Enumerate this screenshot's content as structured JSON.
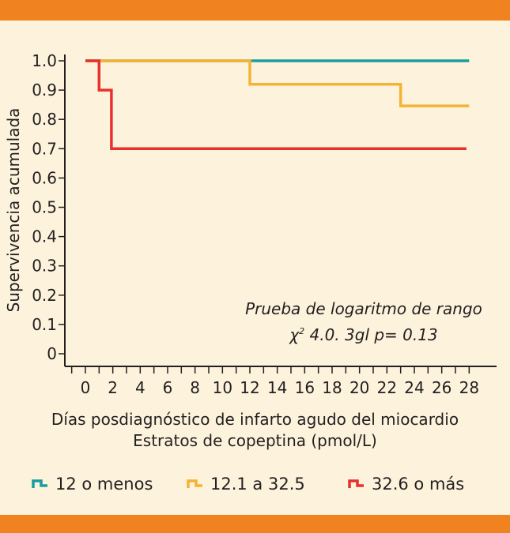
{
  "chart_data": {
    "type": "line",
    "step": true,
    "ylabel": "Supervivencia acumulada",
    "xlabel": "Días posdiagnóstico de infarto agudo del miocardio",
    "subtitle": "Estratos de copeptina (pmol/L)",
    "annotation": {
      "line1": "Prueba de logaritmo de rango",
      "chi_symbol": "χ",
      "chi_sup": "2",
      "chi_rest": " 4.0. 3gl p= 0.13"
    },
    "xlim": [
      -1.5,
      30
    ],
    "ylim": [
      0,
      1.0
    ],
    "x_ticks": [
      0,
      2,
      4,
      6,
      8,
      10,
      12,
      14,
      16,
      18,
      20,
      22,
      24,
      26,
      28
    ],
    "x_tick_labels": [
      "0",
      "2",
      "4",
      "6",
      "8",
      "10",
      "12",
      "14",
      "16",
      "18",
      "20",
      "22",
      "24",
      "26",
      "28"
    ],
    "y_ticks": [
      0,
      0.1,
      0.2,
      0.3,
      0.4,
      0.5,
      0.6,
      0.7,
      0.8,
      0.9,
      1.0
    ],
    "y_tick_labels": [
      "0",
      "0.1",
      "0.2",
      "0.3",
      "0.4",
      "0.5",
      "0.6",
      "0.7",
      "0.8",
      "0.9",
      "1.0"
    ],
    "series": [
      {
        "name": "12 o menos",
        "color": "#1a9da0",
        "points": [
          [
            0,
            1.0
          ],
          [
            28,
            1.0
          ]
        ]
      },
      {
        "name": "12.1 a 32.5",
        "color": "#f5b335",
        "points": [
          [
            0,
            1.0
          ],
          [
            12,
            1.0
          ],
          [
            12,
            0.92
          ],
          [
            23,
            0.92
          ],
          [
            23,
            0.846
          ],
          [
            28,
            0.846
          ]
        ]
      },
      {
        "name": "32.6 o más",
        "color": "#e8312c",
        "points": [
          [
            0,
            1.0
          ],
          [
            1,
            1.0
          ],
          [
            1,
            0.9
          ],
          [
            1.9,
            0.9
          ],
          [
            1.9,
            0.7
          ],
          [
            27.8,
            0.7
          ]
        ]
      }
    ]
  },
  "legend": {
    "item0": "12 o menos",
    "item1": "12.1 a 32.5",
    "item2": "32.6 o más"
  },
  "colors": {
    "band": "#f08320",
    "background": "#fdf3dc",
    "axis": "#231f20"
  }
}
